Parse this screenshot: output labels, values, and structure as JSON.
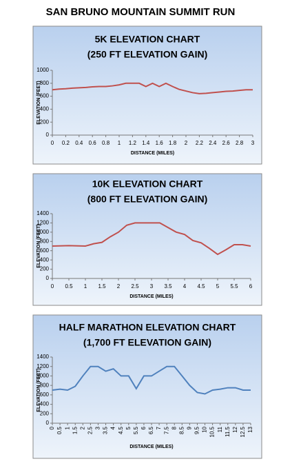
{
  "page_title": "SAN BRUNO MOUNTAIN SUMMIT RUN",
  "chart_data": [
    {
      "type": "line",
      "title": "5K ELEVATION CHART",
      "subtitle": "(250 FT ELEVATION GAIN)",
      "x_label": "DISTANCE (MILES)",
      "y_label": "ELEVATION (FEET)",
      "color": "#c0504d",
      "x": [
        0,
        0.1,
        0.2,
        0.3,
        0.4,
        0.5,
        0.6,
        0.7,
        0.8,
        0.9,
        1.0,
        1.1,
        1.2,
        1.3,
        1.4,
        1.5,
        1.6,
        1.7,
        1.8,
        1.9,
        2.0,
        2.1,
        2.2,
        2.3,
        2.4,
        2.5,
        2.6,
        2.7,
        2.8,
        2.9,
        3.0
      ],
      "values": [
        700,
        710,
        715,
        725,
        730,
        735,
        745,
        750,
        750,
        760,
        775,
        800,
        800,
        800,
        750,
        800,
        750,
        800,
        750,
        705,
        680,
        655,
        640,
        645,
        655,
        665,
        675,
        680,
        690,
        700,
        700
      ],
      "xlim": [
        0,
        3
      ],
      "xticks": [
        0,
        0.2,
        0.4,
        0.6,
        0.8,
        1,
        1.2,
        1.4,
        1.6,
        1.8,
        2,
        2.2,
        2.4,
        2.6,
        2.8,
        3
      ],
      "ylim": [
        0,
        1000
      ],
      "yticks": [
        0,
        200,
        400,
        600,
        800,
        1000
      ]
    },
    {
      "type": "line",
      "title": "10K ELEVATION CHART",
      "subtitle": "(800 FT ELEVATION GAIN)",
      "x_label": "DISTANCE (MILES)",
      "y_label": "ELEVATION (FEET)",
      "color": "#c0504d",
      "x": [
        0,
        0.5,
        1,
        1.25,
        1.5,
        1.75,
        2,
        2.25,
        2.5,
        3,
        3.25,
        3.5,
        3.75,
        4,
        4.25,
        4.5,
        4.75,
        5,
        5.25,
        5.5,
        5.75,
        6
      ],
      "values": [
        700,
        710,
        700,
        750,
        780,
        900,
        1000,
        1150,
        1200,
        1200,
        1200,
        1100,
        1000,
        950,
        820,
        770,
        650,
        520,
        620,
        730,
        730,
        700
      ],
      "xlim": [
        0,
        6
      ],
      "xticks": [
        0,
        0.5,
        1,
        1.5,
        2,
        2.5,
        3,
        3.5,
        4,
        4.5,
        5,
        5.5,
        6
      ],
      "ylim": [
        0,
        1400
      ],
      "yticks": [
        0,
        200,
        400,
        600,
        800,
        1000,
        1200,
        1400
      ]
    },
    {
      "type": "line",
      "title": "HALF MARATHON ELEVATION CHART",
      "subtitle": "(1,700 FT ELEVATION GAIN)",
      "x_label": "DISTANCE (MILES)",
      "y_label": "ELEVATION (FEET)",
      "color": "#4f81bd",
      "x": [
        0,
        0.5,
        1,
        1.5,
        2,
        2.5,
        3,
        3.5,
        4,
        4.5,
        5,
        5.5,
        6,
        6.5,
        7,
        7.5,
        8,
        8.5,
        9,
        9.5,
        10,
        10.5,
        11,
        11.5,
        12,
        12.5,
        13
      ],
      "values": [
        700,
        720,
        700,
        780,
        1000,
        1200,
        1200,
        1100,
        1150,
        1000,
        1000,
        730,
        1000,
        1000,
        1100,
        1200,
        1200,
        1000,
        800,
        650,
        620,
        700,
        720,
        750,
        750,
        700,
        700
      ],
      "xlim": [
        0,
        13
      ],
      "xticks": [
        0,
        0.5,
        1,
        1.5,
        2,
        2.5,
        3,
        3.5,
        4,
        4.5,
        5,
        5.5,
        6,
        6.5,
        7,
        7.5,
        8,
        8.5,
        9,
        9.5,
        10,
        10.5,
        11,
        11.5,
        12,
        12.5,
        13
      ],
      "ylim": [
        0,
        1400
      ],
      "yticks": [
        0,
        200,
        400,
        600,
        800,
        1000,
        1200,
        1400
      ]
    }
  ]
}
